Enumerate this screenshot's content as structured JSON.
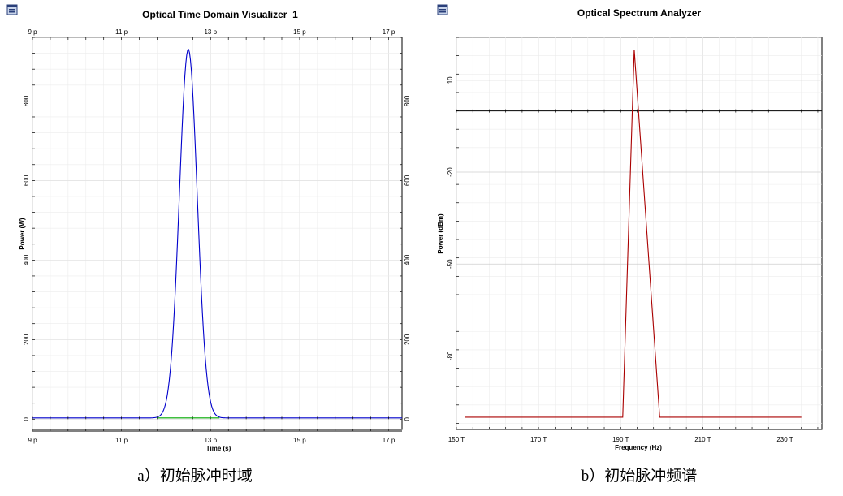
{
  "chart_data": [
    {
      "type": "line",
      "title": "Optical Time Domain Visualizer_1",
      "xlabel": "Time (s)",
      "ylabel": "Power (W)",
      "caption": "a）初始脉冲时域",
      "xlim": [
        9,
        17.3
      ],
      "ylim": [
        -30,
        960
      ],
      "x_ticks": [
        {
          "v": 9,
          "label": "9 p"
        },
        {
          "v": 11,
          "label": "11 p"
        },
        {
          "v": 13,
          "label": "13 p"
        },
        {
          "v": 15,
          "label": "15 p"
        },
        {
          "v": 17,
          "label": "17 p"
        }
      ],
      "y_ticks": [
        {
          "v": 0,
          "label": "0"
        },
        {
          "v": 200,
          "label": "200"
        },
        {
          "v": 400,
          "label": "400"
        },
        {
          "v": 600,
          "label": "600"
        },
        {
          "v": 800,
          "label": "800"
        }
      ],
      "grid": true,
      "series": [
        {
          "color": "#0000cc",
          "kind": "gaussian",
          "center": 12.5,
          "sigma": 0.2,
          "peak": 930,
          "baseline": 3,
          "x_range": [
            9,
            17.3
          ]
        },
        {
          "color": "#00aa00",
          "kind": "flat",
          "value": 3,
          "x_range": [
            11.8,
            13.2
          ]
        }
      ]
    },
    {
      "type": "line",
      "title": "Optical Spectrum Analyzer",
      "xlabel": "Frequency (Hz)",
      "ylabel": "Power (dBm)",
      "caption": "b）初始脉冲频谱",
      "xlim": [
        150,
        239
      ],
      "ylim": [
        -104,
        24
      ],
      "x_ticks": [
        {
          "v": 150,
          "label": "150 T"
        },
        {
          "v": 170,
          "label": "170 T"
        },
        {
          "v": 190,
          "label": "190 T"
        },
        {
          "v": 210,
          "label": "210 T"
        },
        {
          "v": 230,
          "label": "230 T"
        }
      ],
      "y_ticks": [
        {
          "v": 10,
          "label": "10"
        },
        {
          "v": -20,
          "label": "-20"
        },
        {
          "v": -50,
          "label": "-50"
        },
        {
          "v": -80,
          "label": "-80"
        }
      ],
      "grid": true,
      "reference_line": {
        "value": 0,
        "color": "#000000"
      },
      "series": [
        {
          "color": "#aa0000",
          "kind": "polyline",
          "x": [
            152,
            190.5,
            193.3,
            199.5,
            234
          ],
          "y": [
            -100,
            -100,
            20,
            -100,
            -100
          ]
        }
      ]
    }
  ]
}
